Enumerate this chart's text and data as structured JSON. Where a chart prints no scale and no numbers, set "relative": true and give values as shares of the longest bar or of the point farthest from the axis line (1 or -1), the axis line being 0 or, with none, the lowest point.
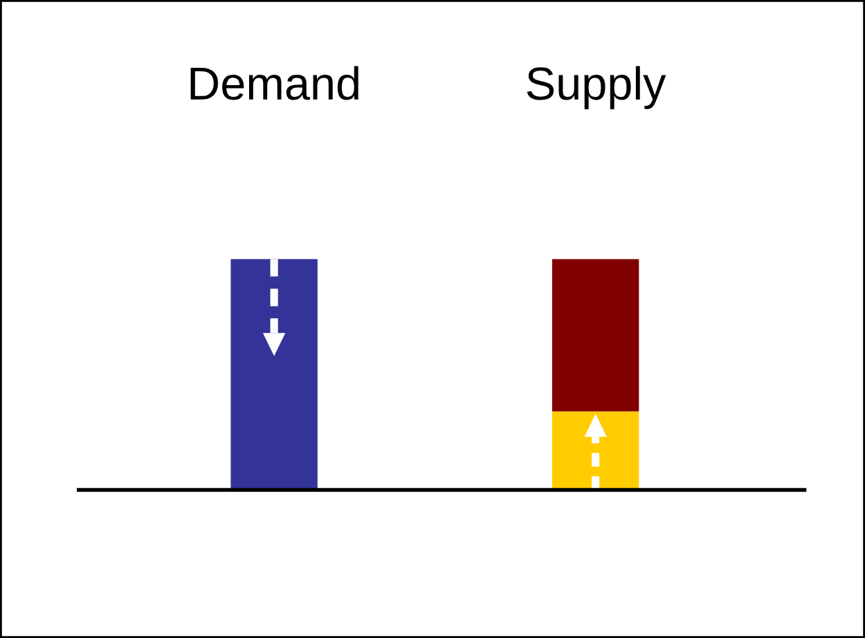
{
  "chart_data": {
    "type": "bar",
    "relative": true,
    "stacked": true,
    "categories": [
      "Demand",
      "Supply"
    ],
    "series": [
      {
        "colors": [
          "#333399",
          "#ffcc00"
        ],
        "values": [
          1,
          0.34
        ]
      },
      {
        "color": "#800000",
        "values": [
          null,
          0.66
        ]
      }
    ]
  }
}
